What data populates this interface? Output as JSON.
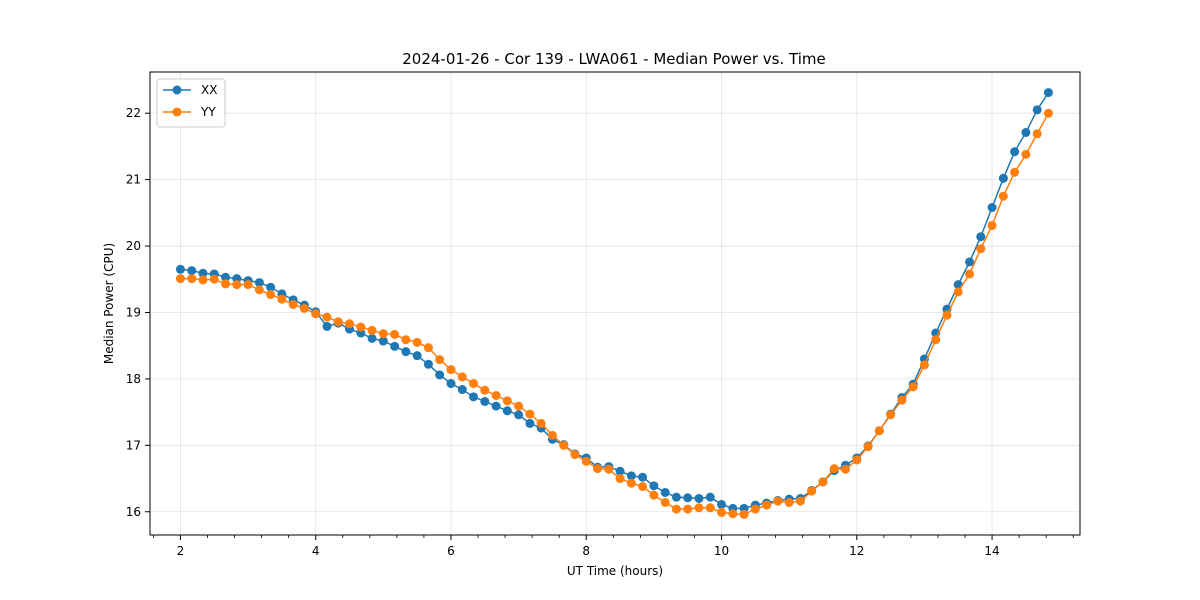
{
  "chart_data": {
    "type": "line",
    "title": "2024-01-26 - Cor 139 - LWA061 - Median Power vs. Time",
    "xlabel": "UT Time (hours)",
    "ylabel": "Median Power (CPU)",
    "xlim": [
      1.55,
      15.3
    ],
    "ylim": [
      15.65,
      22.62
    ],
    "xticks": [
      2,
      4,
      6,
      8,
      10,
      12,
      14
    ],
    "yticks": [
      16,
      17,
      18,
      19,
      20,
      21,
      22
    ],
    "grid": true,
    "legend_position": "top-left",
    "x": [
      2.0,
      2.167,
      2.333,
      2.5,
      2.667,
      2.833,
      3.0,
      3.167,
      3.333,
      3.5,
      3.667,
      3.833,
      4.0,
      4.167,
      4.333,
      4.5,
      4.667,
      4.833,
      5.0,
      5.167,
      5.333,
      5.5,
      5.667,
      5.833,
      6.0,
      6.167,
      6.333,
      6.5,
      6.667,
      6.833,
      7.0,
      7.167,
      7.333,
      7.5,
      7.667,
      7.833,
      8.0,
      8.167,
      8.333,
      8.5,
      8.667,
      8.833,
      9.0,
      9.167,
      9.333,
      9.5,
      9.667,
      9.833,
      10.0,
      10.167,
      10.333,
      10.5,
      10.667,
      10.833,
      11.0,
      11.167,
      11.333,
      11.5,
      11.667,
      11.833,
      12.0,
      12.167,
      12.333,
      12.5,
      12.667,
      12.833,
      13.0,
      13.167,
      13.333,
      13.5,
      13.667,
      13.833,
      14.0,
      14.167,
      14.333,
      14.5,
      14.667,
      14.833
    ],
    "series": [
      {
        "name": "XX",
        "color": "#1f77b4",
        "values": [
          19.65,
          19.63,
          19.59,
          19.58,
          19.53,
          19.51,
          19.48,
          19.45,
          19.38,
          19.28,
          19.19,
          19.11,
          19.01,
          18.79,
          18.84,
          18.75,
          18.69,
          18.61,
          18.57,
          18.49,
          18.41,
          18.35,
          18.22,
          18.06,
          17.93,
          17.84,
          17.73,
          17.66,
          17.59,
          17.52,
          17.46,
          17.33,
          17.26,
          17.09,
          17.01,
          16.87,
          16.81,
          16.67,
          16.68,
          16.61,
          16.54,
          16.52,
          16.39,
          16.29,
          16.22,
          16.21,
          16.2,
          16.22,
          16.11,
          16.05,
          16.05,
          16.1,
          16.13,
          16.17,
          16.19,
          16.2,
          16.32,
          16.45,
          16.62,
          16.7,
          16.81,
          16.99,
          17.22,
          17.47,
          17.72,
          17.92,
          18.3,
          18.69,
          19.05,
          19.42,
          19.76,
          20.14,
          20.58,
          21.02,
          21.42,
          21.71,
          22.05,
          22.31
        ]
      },
      {
        "name": "YY",
        "color": "#ff7f0e",
        "values": [
          19.51,
          19.51,
          19.49,
          19.5,
          19.43,
          19.42,
          19.42,
          19.34,
          19.27,
          19.2,
          19.12,
          19.06,
          18.98,
          18.93,
          18.86,
          18.83,
          18.78,
          18.73,
          18.68,
          18.67,
          18.59,
          18.55,
          18.47,
          18.29,
          18.14,
          18.03,
          17.93,
          17.83,
          17.75,
          17.67,
          17.59,
          17.47,
          17.33,
          17.15,
          17.0,
          16.86,
          16.76,
          16.65,
          16.64,
          16.5,
          16.43,
          16.38,
          16.25,
          16.14,
          16.04,
          16.04,
          16.06,
          16.06,
          15.99,
          15.97,
          15.96,
          16.04,
          16.1,
          16.16,
          16.14,
          16.16,
          16.31,
          16.45,
          16.65,
          16.64,
          16.78,
          16.98,
          17.22,
          17.46,
          17.68,
          17.88,
          18.21,
          18.59,
          18.96,
          19.31,
          19.58,
          19.96,
          20.31,
          20.75,
          21.11,
          21.38,
          21.69,
          22.0
        ]
      }
    ]
  }
}
